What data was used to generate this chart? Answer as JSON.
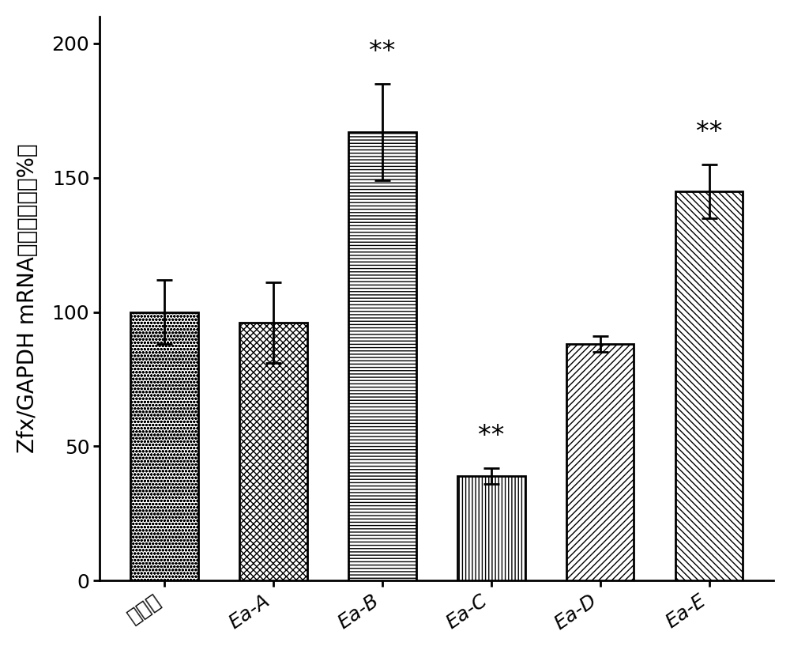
{
  "categories": [
    "对照组",
    "Ea-A",
    "Ea-B",
    "Ea-C",
    "Ea-D",
    "Ea-E"
  ],
  "values": [
    100,
    96,
    167,
    39,
    88,
    145
  ],
  "errors": [
    12,
    15,
    18,
    3,
    3,
    10
  ],
  "ylabel_part1": "Zfx/GAPDH mRNA",
  "ylabel_part2": "相对表达量（%）",
  "ylim": [
    0,
    210
  ],
  "yticks": [
    0,
    50,
    100,
    150,
    200
  ],
  "significance": [
    null,
    null,
    "**",
    "**",
    null,
    "**"
  ],
  "hatch_patterns": [
    "o",
    "x",
    "-",
    "|",
    "/",
    "\\\\"
  ],
  "figsize": [
    10.0,
    8.22
  ],
  "dpi": 100,
  "ylabel_fontsize": 20,
  "tick_fontsize": 18,
  "sig_fontsize": 24,
  "bar_width": 0.62,
  "bar_linewidth": 2.0
}
